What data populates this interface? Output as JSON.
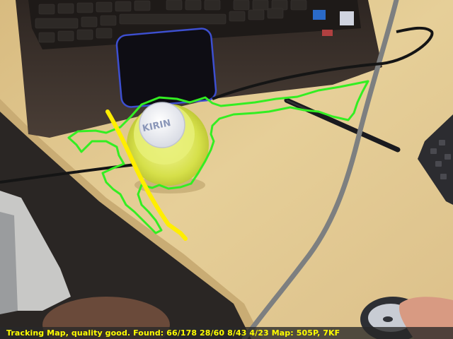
{
  "status_bar": {
    "text": "Tracking Map, quality good. Found: 66/178 28/60 8/43 4/23 Map: 505P, 7KF"
  },
  "scene": {
    "bottle_label": "KIRIN"
  },
  "colors": {
    "tracking_outline": "#33ee22",
    "tracking_trail": "#ffee00",
    "status_text": "#ffff00",
    "desk": "#e3c98f",
    "laptop": "#3a302a",
    "touchpad_border": "#3d4fd0",
    "cable": "#7d7f80"
  }
}
